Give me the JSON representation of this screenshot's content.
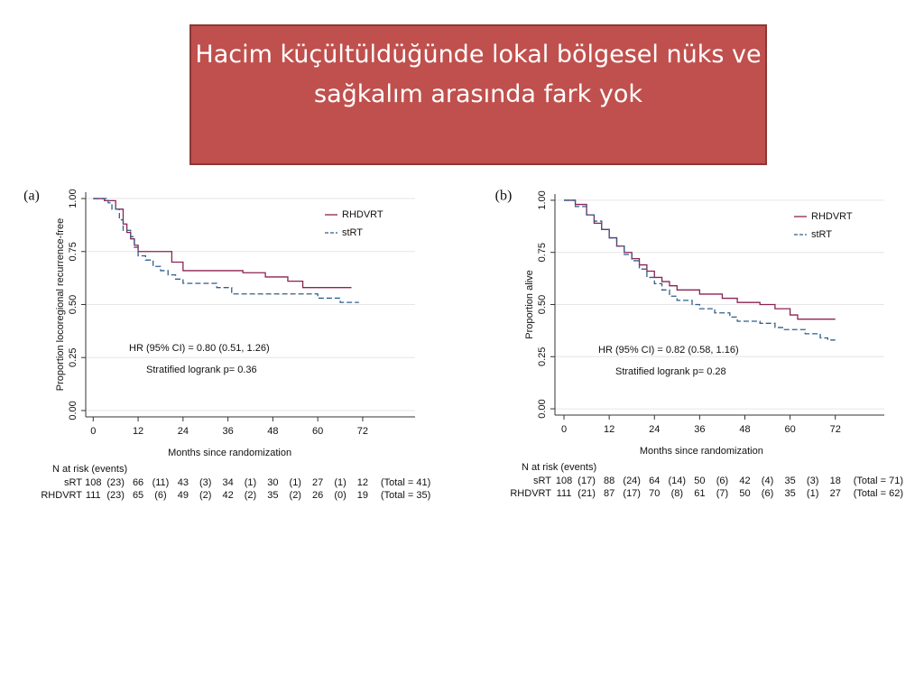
{
  "title": "Hacim küçültüldüğünde lokal bölgesel nüks ve sağkalım arasında fark yok",
  "chart_data": [
    {
      "type": "line",
      "panel": "(a)",
      "xlabel": "Months since randomization",
      "ylabel": "Proportion locoregional recurrence-free",
      "xlim": [
        -2,
        86
      ],
      "ylim": [
        -0.03,
        1.03
      ],
      "xticks": [
        0,
        12,
        24,
        36,
        48,
        60,
        72
      ],
      "yticks": [
        {
          "value": 0,
          "label": "0.00"
        },
        {
          "value": 0.25,
          "label": "0.25"
        },
        {
          "value": 0.5,
          "label": "0.50"
        },
        {
          "value": 0.75,
          "label": "0.75"
        },
        {
          "value": 1,
          "label": "1.00"
        }
      ],
      "grid": true,
      "legend": "upper right",
      "annotations": [
        "HR (95% CI) = 0.80 (0.51, 1.26)",
        "Stratified logrank p= 0.36"
      ],
      "series": [
        {
          "name": "RHDVRT",
          "color": "#8b2252",
          "dashed": false,
          "x": [
            0,
            3,
            3,
            6,
            6,
            8,
            8,
            9,
            9,
            10,
            10,
            11,
            11,
            12,
            12,
            21,
            21,
            24,
            24,
            40,
            40,
            46,
            46,
            52,
            52,
            56,
            56,
            69
          ],
          "values": [
            1.0,
            1.0,
            0.99,
            0.99,
            0.95,
            0.95,
            0.88,
            0.88,
            0.84,
            0.84,
            0.81,
            0.81,
            0.78,
            0.78,
            0.75,
            0.75,
            0.7,
            0.7,
            0.66,
            0.66,
            0.65,
            0.65,
            0.63,
            0.63,
            0.61,
            0.61,
            0.58,
            0.58
          ]
        },
        {
          "name": "stRT",
          "color": "#2f5f8a",
          "dashed": true,
          "x": [
            0,
            4,
            4,
            5,
            5,
            7,
            7,
            8,
            8,
            10,
            10,
            11,
            11,
            12,
            12,
            14,
            14,
            16,
            16,
            18,
            18,
            20,
            20,
            22,
            22,
            24,
            24,
            33,
            33,
            37,
            37,
            60,
            60,
            66,
            66,
            71
          ],
          "values": [
            1.0,
            1.0,
            0.98,
            0.98,
            0.95,
            0.95,
            0.9,
            0.9,
            0.85,
            0.85,
            0.82,
            0.82,
            0.77,
            0.77,
            0.73,
            0.73,
            0.71,
            0.71,
            0.68,
            0.68,
            0.66,
            0.66,
            0.64,
            0.64,
            0.62,
            0.62,
            0.6,
            0.6,
            0.58,
            0.58,
            0.55,
            0.55,
            0.53,
            0.53,
            0.51,
            0.51
          ]
        }
      ],
      "risk_table": {
        "title": "N at risk (events)",
        "rows": [
          {
            "name": "sRT",
            "cells": [
              "108",
              "(23)",
              "66",
              "(11)",
              "43",
              "(3)",
              "34",
              "(1)",
              "30",
              "(1)",
              "27",
              "(1)",
              "12"
            ],
            "total": "(Total = 41)"
          },
          {
            "name": "RHDVRT",
            "cells": [
              "111",
              "(23)",
              "65",
              "(6)",
              "49",
              "(2)",
              "42",
              "(2)",
              "35",
              "(2)",
              "26",
              "(0)",
              "19"
            ],
            "total": "(Total = 35)"
          }
        ]
      }
    },
    {
      "type": "line",
      "panel": "(b)",
      "xlabel": "Months since randomization",
      "ylabel": "Proportion alive",
      "xlim": [
        -2.4,
        85
      ],
      "ylim": [
        -0.03,
        1.03
      ],
      "xticks": [
        0,
        12,
        24,
        36,
        48,
        60,
        72
      ],
      "yticks": [
        {
          "value": 0,
          "label": "0.00"
        },
        {
          "value": 0.25,
          "label": "0.25"
        },
        {
          "value": 0.5,
          "label": "0.50"
        },
        {
          "value": 0.75,
          "label": "0.75"
        },
        {
          "value": 1,
          "label": "1.00"
        }
      ],
      "grid": true,
      "legend": "upper right",
      "annotations": [
        "HR (95% CI) = 0.82 (0.58, 1.16)",
        "Stratified logrank p= 0.28"
      ],
      "series": [
        {
          "name": "RHDVRT",
          "color": "#8b2252",
          "dashed": false,
          "x": [
            0,
            3,
            3,
            6,
            6,
            8,
            8,
            10,
            10,
            12,
            12,
            14,
            14,
            16,
            16,
            18,
            18,
            20,
            20,
            22,
            22,
            24,
            24,
            26,
            26,
            28,
            28,
            30,
            30,
            36,
            36,
            42,
            42,
            46,
            46,
            52,
            52,
            56,
            56,
            60,
            60,
            62,
            62,
            72
          ],
          "values": [
            1.0,
            1.0,
            0.98,
            0.98,
            0.93,
            0.93,
            0.89,
            0.89,
            0.86,
            0.86,
            0.82,
            0.82,
            0.78,
            0.78,
            0.75,
            0.75,
            0.72,
            0.72,
            0.69,
            0.69,
            0.66,
            0.66,
            0.63,
            0.63,
            0.61,
            0.61,
            0.59,
            0.59,
            0.57,
            0.57,
            0.55,
            0.55,
            0.53,
            0.53,
            0.51,
            0.51,
            0.5,
            0.5,
            0.48,
            0.48,
            0.45,
            0.45,
            0.43,
            0.43
          ]
        },
        {
          "name": "stRT",
          "color": "#2f5f8a",
          "dashed": true,
          "x": [
            0,
            3,
            3,
            6,
            6,
            8,
            8,
            10,
            10,
            12,
            12,
            14,
            14,
            16,
            16,
            18,
            18,
            20,
            20,
            22,
            22,
            24,
            24,
            26,
            26,
            28,
            28,
            30,
            30,
            34,
            34,
            36,
            36,
            40,
            40,
            44,
            44,
            46,
            46,
            52,
            52,
            56,
            56,
            58,
            58,
            64,
            64,
            68,
            68,
            70,
            70,
            72
          ],
          "values": [
            1.0,
            1.0,
            0.97,
            0.97,
            0.93,
            0.93,
            0.9,
            0.9,
            0.86,
            0.86,
            0.82,
            0.82,
            0.78,
            0.78,
            0.74,
            0.74,
            0.71,
            0.71,
            0.67,
            0.67,
            0.63,
            0.63,
            0.6,
            0.6,
            0.57,
            0.57,
            0.54,
            0.54,
            0.52,
            0.52,
            0.5,
            0.5,
            0.48,
            0.48,
            0.46,
            0.46,
            0.44,
            0.44,
            0.42,
            0.42,
            0.41,
            0.41,
            0.39,
            0.39,
            0.38,
            0.38,
            0.36,
            0.36,
            0.34,
            0.34,
            0.33,
            0.33
          ]
        }
      ],
      "risk_table": {
        "title": "N at risk (events)",
        "rows": [
          {
            "name": "sRT",
            "cells": [
              "108",
              "(17)",
              "88",
              "(24)",
              "64",
              "(14)",
              "50",
              "(6)",
              "42",
              "(4)",
              "35",
              "(3)",
              "18"
            ],
            "total": "(Total = 71)"
          },
          {
            "name": "RHDVRT",
            "cells": [
              "111",
              "(21)",
              "87",
              "(17)",
              "70",
              "(8)",
              "61",
              "(7)",
              "50",
              "(6)",
              "35",
              "(1)",
              "27"
            ],
            "total": "(Total = 62)"
          }
        ]
      }
    }
  ]
}
